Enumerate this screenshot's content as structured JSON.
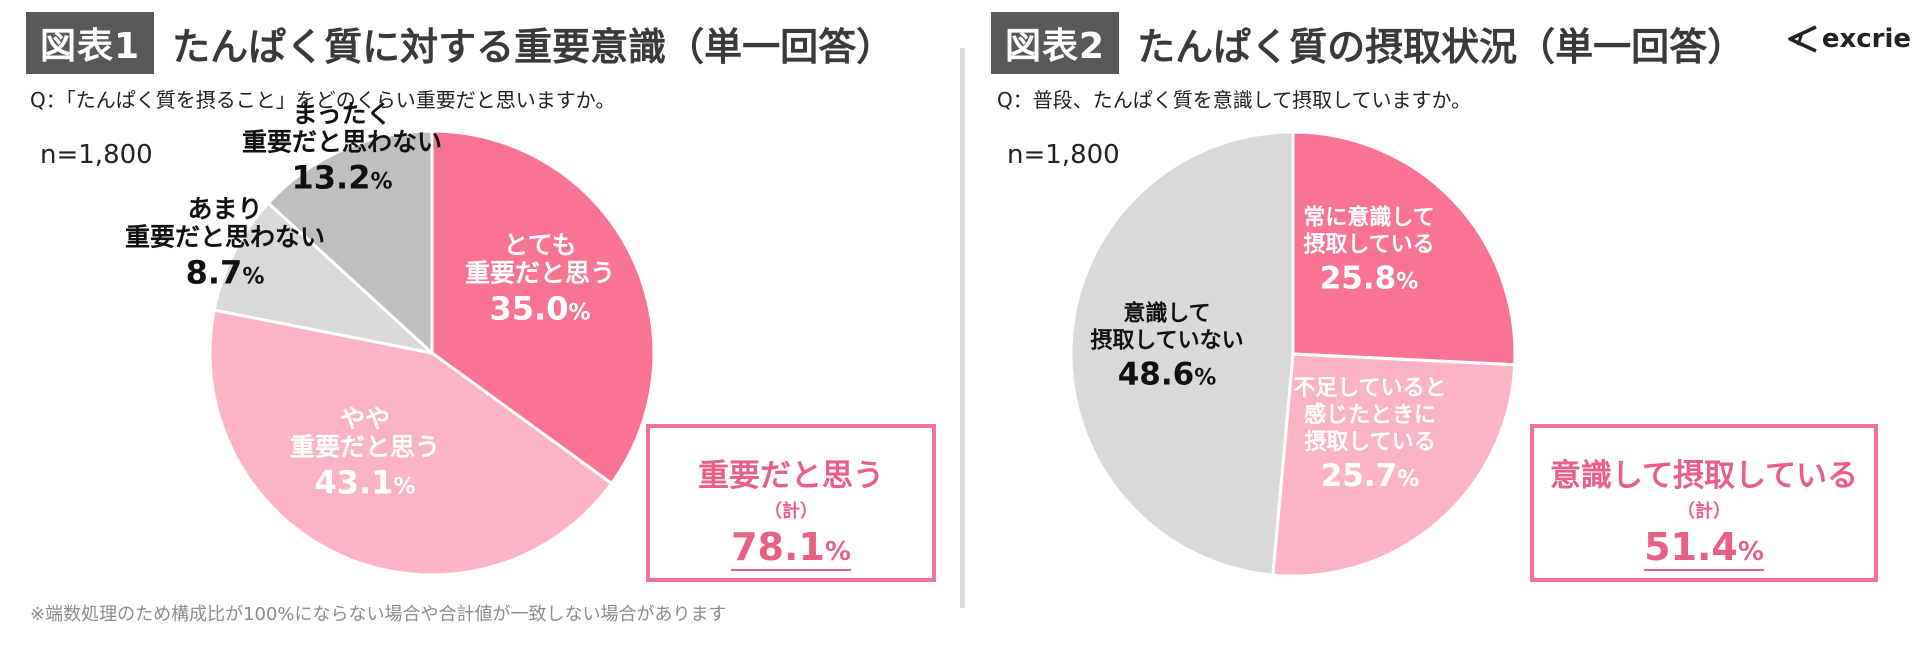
{
  "panel1": {
    "fig_tag": "図表1",
    "title": "たんぱく質に対する重要意識（単一回答）",
    "question": "Q：「たんぱく質を摂ること」をどのくらい重要だと思いますか。",
    "n_label": "n=1,800",
    "total": {
      "label": "重要だと思う",
      "sub": "（計）",
      "value": "78.1",
      "unit": "%"
    }
  },
  "panel2": {
    "fig_tag": "図表2",
    "title": "たんぱく質の摂取状況（単一回答）",
    "question": "Q：普段、たんぱく質を意識して摂取していますか。",
    "n_label": "n=1,800",
    "total": {
      "label": "意識して摂取している",
      "sub": "（計）",
      "value": "51.4",
      "unit": "%"
    }
  },
  "logo": {
    "text": "excrie",
    "icon": "excrie-logo-icon"
  },
  "footnote": "※端数処理のため構成比が100%にならない場合や合計値が一致しない場合があります",
  "chart_data": [
    {
      "type": "pie",
      "title": "たんぱく質に対する重要意識（単一回答）",
      "n": 1800,
      "unit": "%",
      "slices": [
        {
          "lines": [
            "とても",
            "重要だと思う"
          ],
          "value": 35.0,
          "color": "#f97394",
          "text_color": "#ffffff"
        },
        {
          "lines": [
            "やや",
            "重要だと思う"
          ],
          "value": 43.1,
          "color": "#fbb4c5",
          "text_color": "#ffffff"
        },
        {
          "lines": [
            "あまり",
            "重要だと思わない"
          ],
          "value": 8.7,
          "color": "#d9d9d9",
          "text_color": "#111111"
        },
        {
          "lines": [
            "まったく",
            "重要だと思わない"
          ],
          "value": 13.2,
          "color": "#bfbfbf",
          "text_color": "#111111"
        }
      ]
    },
    {
      "type": "pie",
      "title": "たんぱく質の摂取状況（単一回答）",
      "n": 1800,
      "unit": "%",
      "slices": [
        {
          "lines": [
            "常に意識して",
            "摂取している"
          ],
          "value": 25.8,
          "color": "#f97394",
          "text_color": "#ffffff"
        },
        {
          "lines": [
            "不足していると",
            "感じたときに",
            "摂取している"
          ],
          "value": 25.7,
          "color": "#fbb4c5",
          "text_color": "#ffffff"
        },
        {
          "lines": [
            "意識して",
            "摂取していない"
          ],
          "value": 48.6,
          "color": "#d9d9d9",
          "text_color": "#111111"
        }
      ]
    }
  ]
}
